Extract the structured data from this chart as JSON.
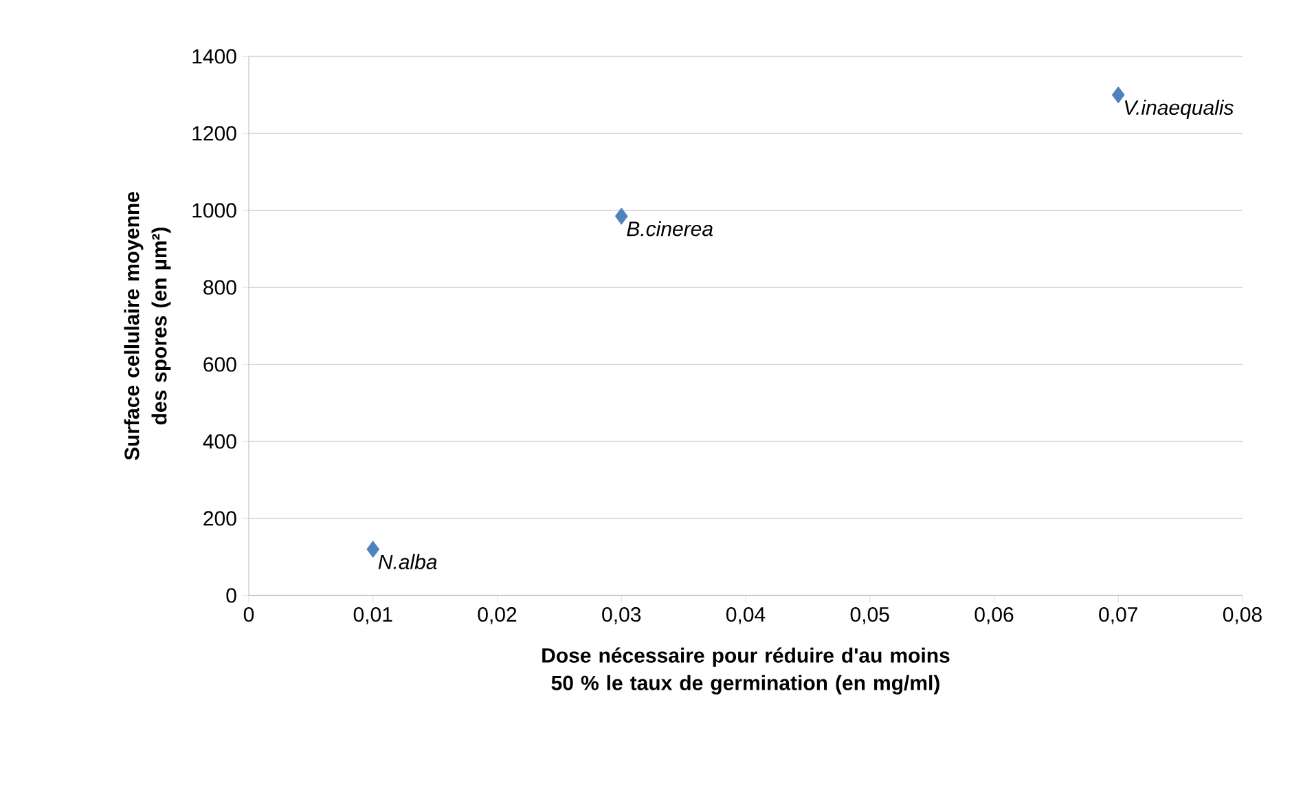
{
  "chart_data": {
    "type": "scatter",
    "xlabel": "Dose nécessaire pour réduire d'au moins 50 % le taux de germination (en mg/ml)",
    "ylabel": "Surface cellulaire moyenne des spores (en µm²)",
    "x": [
      0.01,
      0.03,
      0.07
    ],
    "values": [
      120,
      985,
      1300
    ],
    "color": "#4f81bd",
    "marker": "diamond",
    "xlim": [
      0,
      0.08
    ],
    "xticks": [
      0,
      {
        "value": 0.01,
        "label": "0,01"
      },
      {
        "value": 0.02,
        "label": "0,02"
      },
      {
        "value": 0.03,
        "label": "0,03"
      },
      {
        "value": 0.04,
        "label": "0,04"
      },
      {
        "value": 0.05,
        "label": "0,05"
      },
      {
        "value": 0.06,
        "label": "0,06"
      },
      {
        "value": 0.07,
        "label": "0,07"
      },
      {
        "value": 0.08,
        "label": "0,08"
      }
    ],
    "ylim": [
      0,
      1400
    ],
    "yticks": [
      0,
      200,
      400,
      600,
      800,
      1000,
      1200,
      1400
    ],
    "grid": "y",
    "annotations": [
      {
        "text": "*N.alba*",
        "x": 0.01,
        "y": 120
      },
      {
        "text": "*B.cinerea*",
        "x": 0.03,
        "y": 985
      },
      {
        "text": "*V.inaequalis*",
        "x": 0.07,
        "y": 1300
      }
    ]
  }
}
